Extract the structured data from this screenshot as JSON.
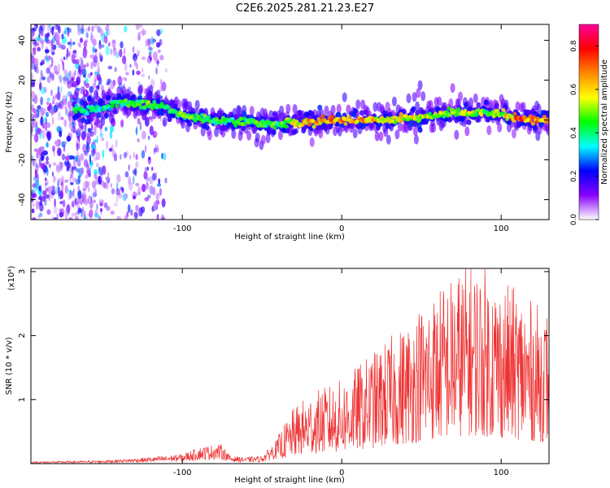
{
  "title": "C2E6.2025.281.21.23.E27",
  "chart_data": [
    {
      "type": "heatmap",
      "name": "spectrogram",
      "xlabel": "Height of straight line (km)",
      "ylabel": "Frequency (Hz)",
      "xlim": [
        -195,
        130
      ],
      "ylim": [
        -50,
        48
      ],
      "xticks": [
        -100,
        0,
        100
      ],
      "yticks": [
        -40,
        -20,
        0,
        20,
        40
      ],
      "yticklabels": [
        "-40",
        "-20",
        "0",
        "20",
        "40"
      ],
      "xticklabels": [
        "-100",
        "0",
        "100"
      ],
      "ridge": {
        "x": [
          -165,
          -150,
          -140,
          -130,
          -120,
          -110,
          -100,
          -80,
          -60,
          -40,
          -20,
          0,
          20,
          40,
          60,
          70,
          80,
          90,
          100,
          110,
          120,
          130
        ],
        "freq": [
          5,
          6,
          9,
          8,
          8,
          6,
          2,
          0,
          -1,
          -2,
          -1,
          0,
          0,
          1,
          2,
          4,
          3,
          4,
          3,
          1,
          0,
          1
        ],
        "amplitude": [
          0.45,
          0.4,
          0.45,
          0.5,
          0.5,
          0.45,
          0.55,
          0.5,
          0.5,
          0.5,
          0.7,
          0.75,
          0.7,
          0.65,
          0.6,
          0.55,
          0.6,
          0.55,
          0.6,
          0.8,
          0.75,
          0.7
        ]
      },
      "colorbar": {
        "label": "Normalized spectral amplitude",
        "range": [
          0.0,
          0.9
        ],
        "ticks": [
          0.0,
          0.2,
          0.4,
          0.6,
          0.8
        ],
        "ticklabels": [
          "0.0",
          "0.2",
          "0.4",
          "0.6",
          "0.8"
        ],
        "colors": [
          "#ffffff",
          "#8800ff",
          "#0000ff",
          "#00ffff",
          "#00ff00",
          "#ffff00",
          "#ff8800",
          "#ff0000",
          "#ff0099"
        ]
      }
    },
    {
      "type": "line",
      "name": "snr",
      "xlabel": "Height of straight line (km)",
      "ylabel": "SNR (10 * v/v)",
      "y_multiplier_label": "(x10⁴)",
      "xlim": [
        -195,
        130
      ],
      "ylim": [
        0,
        3.05
      ],
      "xticks": [
        -100,
        0,
        100
      ],
      "xticklabels": [
        "-100",
        "0",
        "100"
      ],
      "yticks": [
        1,
        2,
        3
      ],
      "yticklabels": [
        "1",
        "2",
        "3"
      ],
      "color": "#ee3333",
      "envelope_x": [
        -195,
        -150,
        -120,
        -100,
        -90,
        -80,
        -75,
        -70,
        -60,
        -50,
        -40,
        -35,
        -30,
        -20,
        -10,
        0,
        10,
        20,
        30,
        40,
        50,
        60,
        70,
        80,
        90,
        100,
        110,
        120,
        130
      ],
      "envelope_y": [
        0.03,
        0.05,
        0.1,
        0.15,
        0.25,
        0.3,
        0.3,
        0.12,
        0.1,
        0.12,
        0.4,
        0.6,
        0.8,
        1.0,
        1.1,
        1.2,
        1.4,
        1.6,
        1.8,
        2.0,
        2.3,
        2.5,
        2.7,
        2.9,
        2.8,
        2.6,
        2.5,
        2.3,
        2.2
      ]
    }
  ]
}
